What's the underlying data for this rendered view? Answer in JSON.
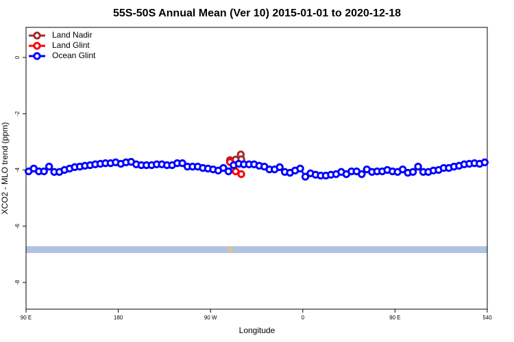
{
  "chart_data": {
    "type": "line",
    "title": "55S-50S Annual Mean (Ver 10)   2015-01-01 to 2020-12-18",
    "x_label": "Longitude",
    "y_label": "XCO2 - MLO trend (ppm)",
    "xlim": [
      90,
      540
    ],
    "xticks": [
      {
        "value": 90,
        "label": "90 E"
      },
      180,
      {
        "value": 270,
        "label": "90 W"
      },
      {
        "value": 360,
        "label": "0"
      },
      {
        "value": 450,
        "label": "90 E"
      },
      540
    ],
    "ylim": [
      -8.95,
      1.07
    ],
    "yticks": [
      0,
      -2,
      -4,
      -6,
      -8
    ],
    "legend": "top-left",
    "series": [
      {
        "name": "Land Nadir",
        "color": "#a52a2a",
        "x": [
          289,
          294.5,
          299.5,
          300
        ],
        "values": [
          -3.65,
          -3.63,
          -3.45,
          -3.62
        ]
      },
      {
        "name": "Land Glint",
        "color": "#ff0000",
        "x": [
          289,
          294.5,
          300
        ],
        "values": [
          -3.72,
          -4.05,
          -4.15
        ]
      },
      {
        "name": "Ocean Glint",
        "color": "#0000ff",
        "x": [
          92.5,
          97.5,
          102.5,
          107.5,
          112.5,
          117.5,
          122.5,
          127.5,
          132.5,
          137.5,
          142.5,
          147.5,
          152.5,
          157.5,
          162.5,
          167.5,
          172.5,
          177.5,
          182.5,
          187.5,
          192.5,
          197.5,
          202.5,
          207.5,
          212.5,
          217.5,
          222.5,
          227.5,
          232.5,
          237.5,
          242.5,
          247.5,
          252.5,
          257.5,
          262.5,
          267.5,
          272.5,
          277.5,
          282.5,
          287.5,
          292.5,
          297.5,
          302.5,
          307.5,
          312.5,
          317.5,
          322.5,
          327.5,
          332.5,
          337.5,
          342.5,
          347.5,
          352.5,
          357.5,
          362.5,
          367.5,
          372.5,
          377.5,
          382.5,
          387.5,
          392.5,
          397.5,
          402.5,
          407.5,
          412.5,
          417.5,
          422.5,
          427.5,
          432.5,
          437.5,
          442.5,
          447.5,
          452.5,
          457.5,
          462.5,
          467.5,
          472.5,
          477.5,
          482.5,
          487.5,
          492.5,
          497.5,
          502.5,
          507.5,
          512.5,
          517.5,
          522.5,
          527.5,
          532.5,
          537.5
        ],
        "values": [
          -4.05,
          -3.95,
          -4.05,
          -4.05,
          -3.88,
          -4.07,
          -4.07,
          -4.0,
          -3.95,
          -3.9,
          -3.88,
          -3.85,
          -3.83,
          -3.8,
          -3.78,
          -3.76,
          -3.76,
          -3.73,
          -3.78,
          -3.73,
          -3.71,
          -3.8,
          -3.83,
          -3.83,
          -3.83,
          -3.8,
          -3.8,
          -3.83,
          -3.83,
          -3.76,
          -3.76,
          -3.88,
          -3.88,
          -3.88,
          -3.93,
          -3.95,
          -3.98,
          -4.02,
          -3.93,
          -4.05,
          -3.83,
          -3.78,
          -3.8,
          -3.8,
          -3.8,
          -3.85,
          -3.88,
          -3.98,
          -3.98,
          -3.9,
          -4.07,
          -4.1,
          -4.02,
          -3.95,
          -4.24,
          -4.12,
          -4.17,
          -4.2,
          -4.2,
          -4.17,
          -4.15,
          -4.07,
          -4.15,
          -4.05,
          -4.05,
          -4.15,
          -3.98,
          -4.07,
          -4.05,
          -4.05,
          -4.0,
          -4.05,
          -4.07,
          -3.98,
          -4.1,
          -4.07,
          -3.88,
          -4.07,
          -4.07,
          -4.02,
          -4.0,
          -3.93,
          -3.93,
          -3.88,
          -3.85,
          -3.8,
          -3.78,
          -3.76,
          -3.78,
          -3.73
        ]
      }
    ]
  }
}
